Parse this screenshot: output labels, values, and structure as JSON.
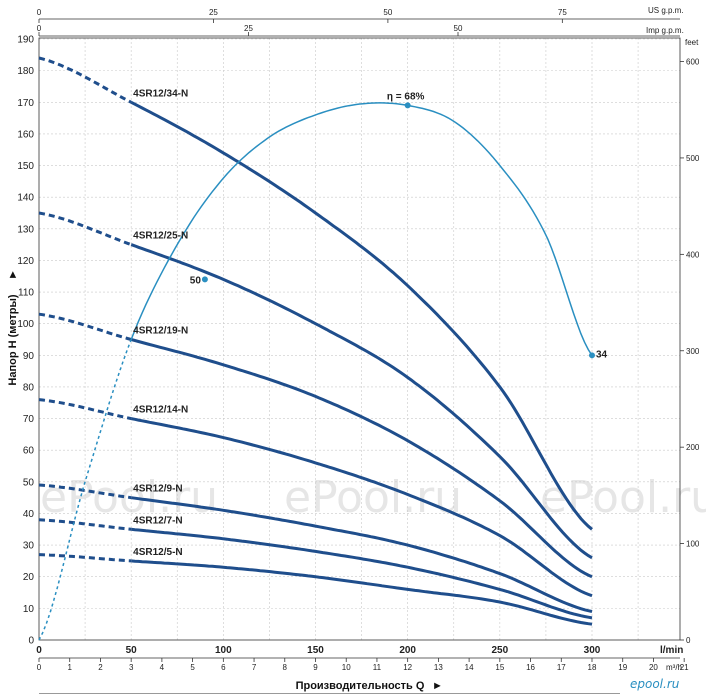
{
  "chart_data": {
    "type": "line",
    "ylabel": "Напор Н (метры)",
    "ylabel_arrow": "►",
    "xlabel": "Производительность Q",
    "xlabel_arrow": "►",
    "x_unit_lmin": "l/min",
    "x_unit_m3h": "m³/h",
    "x_unit_usgpm": "US g.p.m.",
    "x_unit_impgpm": "Imp g.p.m.",
    "y_unit_feet": "feet",
    "xlim": [
      0,
      300
    ],
    "ylim": [
      0,
      190
    ],
    "grid": true,
    "x_ticks_lmin": [
      "0",
      "50",
      "100",
      "150",
      "200",
      "250",
      "300"
    ],
    "x_ticks_m3h": [
      "0",
      "1",
      "2",
      "3",
      "4",
      "5",
      "6",
      "7",
      "8",
      "9",
      "10",
      "11",
      "12",
      "13",
      "14",
      "15",
      "16",
      "17",
      "18",
      "19",
      "20",
      "21"
    ],
    "x_ticks_usgpm": [
      "0",
      "25",
      "50",
      "75"
    ],
    "x_ticks_impgpm": [
      "0",
      "25",
      "50"
    ],
    "y_ticks": [
      "0",
      "10",
      "20",
      "30",
      "40",
      "50",
      "60",
      "70",
      "80",
      "90",
      "100",
      "110",
      "120",
      "130",
      "140",
      "150",
      "160",
      "170",
      "180",
      "190"
    ],
    "y_ticks_feet": [
      "0",
      "100",
      "200",
      "300",
      "400",
      "500",
      "600"
    ],
    "series": [
      {
        "name": "4SR12/34-N",
        "dashed_end_x": 50,
        "x": [
          0,
          50,
          100,
          150,
          200,
          250,
          300
        ],
        "y": [
          184,
          170,
          154,
          135,
          112,
          80,
          35
        ]
      },
      {
        "name": "4SR12/25-N",
        "dashed_end_x": 50,
        "x": [
          0,
          50,
          100,
          150,
          200,
          250,
          300
        ],
        "y": [
          135,
          125,
          114,
          100,
          83,
          58,
          26
        ]
      },
      {
        "name": "4SR12/19-N",
        "dashed_end_x": 50,
        "x": [
          0,
          50,
          100,
          150,
          200,
          250,
          300
        ],
        "y": [
          103,
          95,
          87,
          77,
          63,
          44,
          20
        ]
      },
      {
        "name": "4SR12/14-N",
        "dashed_end_x": 50,
        "x": [
          0,
          50,
          100,
          150,
          200,
          250,
          300
        ],
        "y": [
          76,
          70,
          64,
          56,
          46,
          33,
          14
        ]
      },
      {
        "name": "4SR12/9-N",
        "dashed_end_x": 50,
        "x": [
          0,
          50,
          100,
          150,
          200,
          250,
          300
        ],
        "y": [
          49,
          45,
          41,
          36,
          30,
          21,
          9
        ]
      },
      {
        "name": "4SR12/7-N",
        "dashed_end_x": 50,
        "x": [
          0,
          50,
          100,
          150,
          200,
          250,
          300
        ],
        "y": [
          38,
          35,
          32,
          28,
          23,
          16,
          7
        ]
      },
      {
        "name": "4SR12/5-N",
        "dashed_end_x": 50,
        "x": [
          0,
          50,
          100,
          150,
          200,
          250,
          300
        ],
        "y": [
          27,
          25,
          23,
          20,
          16,
          12,
          5
        ]
      }
    ],
    "efficiency": {
      "label": "η = 68%",
      "x": [
        0,
        25,
        50,
        75,
        100,
        125,
        150,
        175,
        200,
        225,
        250,
        275,
        300
      ],
      "y": [
        0,
        50,
        95,
        125,
        146,
        159,
        166,
        169.5,
        169,
        164,
        150,
        128,
        90
      ],
      "dashed_end_x": 50,
      "markers": [
        {
          "label": "50",
          "x": 90,
          "y": 114
        },
        {
          "label": "η = 68%",
          "x": 200,
          "y": 169
        },
        {
          "label": "34",
          "x": 300,
          "y": 90
        }
      ]
    },
    "curve_color": "#1f4e8c",
    "efficiency_color": "#2a8fc1"
  },
  "watermark": "ePool.ru",
  "logo": "epool.ru"
}
